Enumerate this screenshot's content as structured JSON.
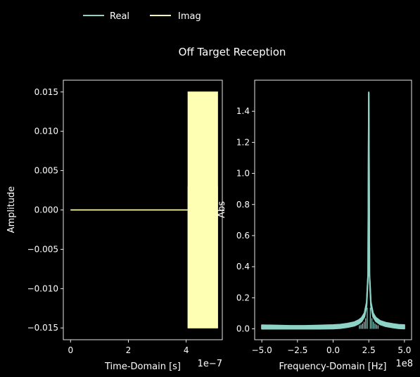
{
  "suptitle": "Off Target Reception",
  "legend": {
    "items": [
      {
        "label": "Real",
        "color": "#8dd3c7"
      },
      {
        "label": "Imag",
        "color": "#ffffb3"
      }
    ],
    "placement": "top-left (figure)"
  },
  "chart_data": [
    {
      "type": "line",
      "panel": "time-domain",
      "xlabel": "Time-Domain [s]",
      "ylabel": "Amplitude",
      "x_offset_text": "1e−7",
      "xlim": [
        -0.25,
        5.25
      ],
      "ylim": [
        -0.0165,
        0.0165
      ],
      "xticks": [
        0,
        2,
        4
      ],
      "xtick_labels": [
        "0",
        "2",
        "4"
      ],
      "yticks": [
        -0.015,
        -0.01,
        -0.005,
        0.0,
        0.005,
        0.01,
        0.015
      ],
      "ytick_labels": [
        "−0.015",
        "−0.010",
        "−0.005",
        "0.000",
        "0.005",
        "0.010",
        "0.015"
      ],
      "grid": false,
      "series": [
        {
          "name": "Real",
          "color": "#8dd3c7",
          "x": [
            0,
            4.05,
            4.05,
            5.1
          ],
          "y": [
            0,
            0,
            0.003,
            0.003
          ],
          "burst_band": [
            -0.015,
            0.003
          ]
        },
        {
          "name": "Imag",
          "color": "#ffffb3",
          "x": [
            0,
            4.05,
            4.05,
            5.1
          ],
          "y": [
            0,
            0,
            0.015,
            0.015
          ],
          "burst_band": [
            -0.015,
            0.015
          ]
        }
      ]
    },
    {
      "type": "line",
      "panel": "frequency-domain",
      "xlabel": "Frequency-Domain [Hz]",
      "ylabel": "Abs",
      "x_offset_text": "1e8",
      "xlim": [
        -5.5,
        5.5
      ],
      "ylim": [
        -0.07,
        1.6
      ],
      "xticks": [
        -5.0,
        -2.5,
        0.0,
        2.5,
        5.0
      ],
      "xtick_labels": [
        "−5.0",
        "−2.5",
        "0.0",
        "2.5",
        "5.0"
      ],
      "yticks": [
        0.0,
        0.2,
        0.4,
        0.6,
        0.8,
        1.0,
        1.2,
        1.4
      ],
      "ytick_labels": [
        "0.0",
        "0.2",
        "0.4",
        "0.6",
        "0.8",
        "1.0",
        "1.2",
        "1.4"
      ],
      "grid": false,
      "series": [
        {
          "color": "#8dd3c7",
          "x": [
            -5.0,
            -4.0,
            -3.0,
            -2.0,
            -1.0,
            0.0,
            0.5,
            1.0,
            1.5,
            1.8,
            2.0,
            2.2,
            2.35,
            2.45,
            2.5,
            2.55,
            2.65,
            2.8,
            3.0,
            3.3,
            3.7,
            4.2,
            4.6,
            5.0
          ],
          "y": [
            0.012,
            0.01,
            0.008,
            0.008,
            0.01,
            0.013,
            0.016,
            0.022,
            0.032,
            0.045,
            0.06,
            0.09,
            0.16,
            0.35,
            1.52,
            0.35,
            0.16,
            0.09,
            0.06,
            0.04,
            0.028,
            0.02,
            0.015,
            0.013
          ],
          "band_halfwidth": 0.012
        }
      ]
    }
  ]
}
